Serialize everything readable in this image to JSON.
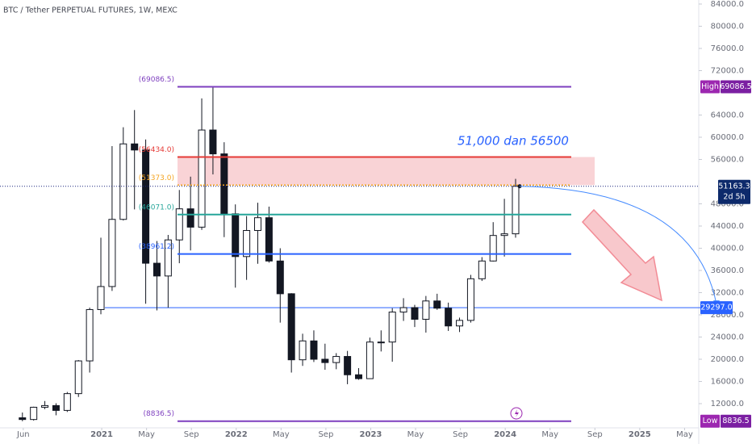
{
  "chart_data": {
    "type": "candlestick",
    "title": "BTC / Tether PERPETUAL FUTURES, 1W, MEXC",
    "x": [
      5.5,
      6.5,
      7.5,
      8.5,
      9.5,
      10.5,
      11.5,
      12.5,
      13.5,
      14.5,
      15.5,
      16.5,
      17.5,
      18.5,
      19.5,
      20.5,
      21.5,
      22.5,
      23.5,
      24.5,
      25.5,
      26.5,
      27.5,
      28.5,
      29.5,
      30.5,
      31.5,
      32.5,
      33.5,
      34.5,
      35.5,
      36.5,
      37.5,
      38.5,
      39.5,
      40.5,
      41.5,
      42.5,
      43.5,
      44.5,
      45.5,
      46.5,
      47.5,
      48.5,
      49.5
    ],
    "open": [
      9450,
      9140,
      11350,
      11650,
      10780,
      13800,
      19700,
      28950,
      33100,
      45200,
      58800,
      57700,
      37300,
      35000,
      41500,
      47100,
      43800,
      61300,
      57000,
      46200,
      38500,
      43200,
      45500,
      37700,
      31800,
      19900,
      23300,
      20000,
      19400,
      20500,
      17200,
      16500,
      23100,
      23100,
      28500,
      29300,
      27200,
      30500,
      29200,
      26000,
      27000,
      34500,
      37700,
      42300,
      42600
    ],
    "high": [
      10400,
      11450,
      12470,
      12070,
      14100,
      19850,
      29300,
      41900,
      58400,
      61800,
      64900,
      59600,
      41300,
      42400,
      50500,
      52900,
      67000,
      69086.5,
      59100,
      47900,
      45800,
      48200,
      47500,
      40000,
      31900,
      24600,
      25200,
      22800,
      21100,
      21500,
      18400,
      23900,
      25200,
      29200,
      31000,
      29800,
      31400,
      31800,
      30200,
      27500,
      35200,
      38400,
      44700,
      48900,
      52500
    ],
    "low": [
      8836.5,
      8950,
      11000,
      9900,
      10500,
      13200,
      17600,
      28100,
      32300,
      45000,
      47000,
      30000,
      28800,
      29300,
      37300,
      39600,
      43300,
      53300,
      42000,
      32900,
      34300,
      37200,
      37400,
      26600,
      17600,
      18800,
      19500,
      18100,
      18200,
      15500,
      16300,
      16500,
      21400,
      19550,
      26900,
      25800,
      24800,
      28900,
      25100,
      24900,
      26600,
      34100,
      37600,
      38500,
      41900
    ],
    "close": [
      9140,
      11350,
      11650,
      10780,
      13800,
      19700,
      28950,
      33100,
      45200,
      58800,
      57700,
      37300,
      35000,
      41500,
      47100,
      43800,
      61300,
      57000,
      46200,
      38500,
      43200,
      45500,
      37700,
      31800,
      19900,
      23300,
      20000,
      19400,
      20500,
      17200,
      16500,
      23100,
      23100,
      28500,
      29300,
      27200,
      30500,
      29200,
      26000,
      27000,
      34500,
      37700,
      42300,
      42600,
      51163.3
    ],
    "up_color": "#ffffff",
    "down_color": "#131722",
    "xlim": [
      3.5,
      65.77
    ],
    "xticks": [
      {
        "value": 5,
        "label": "Jun"
      },
      {
        "value": 12,
        "label": "2021"
      },
      {
        "value": 16,
        "label": "May"
      },
      {
        "value": 20,
        "label": "Sep"
      },
      {
        "value": 24,
        "label": "2022"
      },
      {
        "value": 28,
        "label": "May"
      },
      {
        "value": 32,
        "label": "Sep"
      },
      {
        "value": 36,
        "label": "2023"
      },
      {
        "value": 40,
        "label": "May"
      },
      {
        "value": 44,
        "label": "Sep"
      },
      {
        "value": 48,
        "label": "2024"
      },
      {
        "value": 52,
        "label": "May"
      },
      {
        "value": 56,
        "label": "Sep"
      },
      {
        "value": 60,
        "label": "2025"
      },
      {
        "value": 64,
        "label": "May"
      }
    ],
    "ylim": [
      7636,
      84727
    ],
    "yticks": [
      {
        "value": 84000,
        "label": "84000.0"
      },
      {
        "value": 80000,
        "label": "80000.0"
      },
      {
        "value": 76000,
        "label": "76000.0"
      },
      {
        "value": 72000,
        "label": "72000.0"
      },
      {
        "value": 64000,
        "label": "64000.0"
      },
      {
        "value": 60000,
        "label": "60000.0"
      },
      {
        "value": 56000,
        "label": "56000.0"
      },
      {
        "value": 48000,
        "label": "48000.0"
      },
      {
        "value": 44000,
        "label": "44000.0"
      },
      {
        "value": 40000,
        "label": "40000.0"
      },
      {
        "value": 36000,
        "label": "36000.0"
      },
      {
        "value": 32000,
        "label": "32000.0"
      },
      {
        "value": 28000,
        "label": "28000.0"
      },
      {
        "value": 24000,
        "label": "24000.0"
      },
      {
        "value": 20000,
        "label": "20000.0"
      },
      {
        "value": 16000,
        "label": "16000.0"
      },
      {
        "value": 12000,
        "label": "12000.0"
      }
    ],
    "levels": [
      {
        "value": 69086.5,
        "label": "(69086.5)",
        "color": "#7e3fbf"
      },
      {
        "value": 56434.0,
        "label": "(56434.0)",
        "color": "#e53935"
      },
      {
        "value": 51373.0,
        "label": "(51373.0)",
        "color": "#f5a623"
      },
      {
        "value": 46071.0,
        "label": "(46071.0)",
        "color": "#26a69a"
      },
      {
        "value": 38961.2,
        "label": "(38961.2)",
        "color": "#2962ff"
      },
      {
        "value": 8836.5,
        "label": "(8836.5)",
        "color": "#7e3fbf"
      }
    ],
    "zone": {
      "from": 56434.0,
      "to": 51373.0,
      "color": "#f8c8cc"
    },
    "annotation": "51,000 dan  56500",
    "target_line": {
      "value": 29297.0,
      "label": "29297.0",
      "color": "#2962ff"
    },
    "high_tag": {
      "name": "High",
      "value": 69086.5,
      "label": "69086.5"
    },
    "low_tag": {
      "name": "Low",
      "value": 8836.5,
      "label": "8836.5"
    },
    "last_price": {
      "value": 51163.3,
      "label": "51163.3",
      "countdown": "2d 5h"
    }
  }
}
